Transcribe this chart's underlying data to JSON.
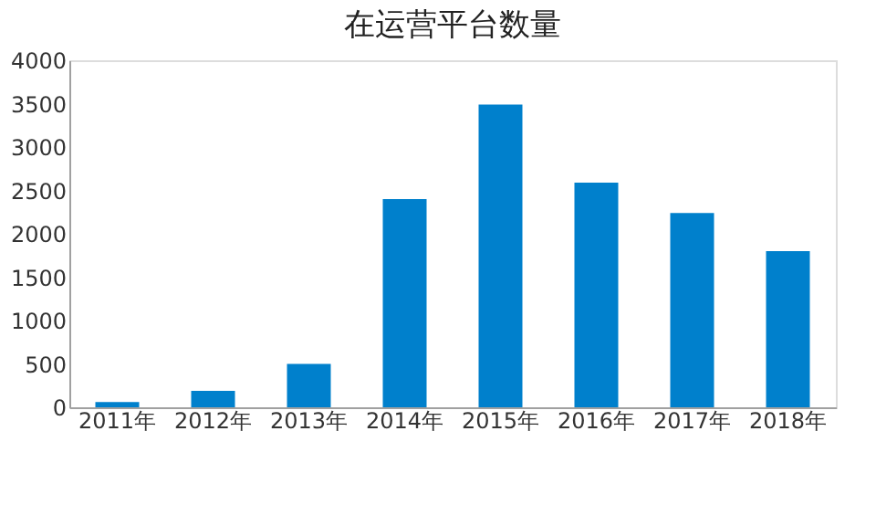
{
  "chart_data": {
    "type": "bar",
    "title": "在运营平台数量",
    "categories": [
      "2011年",
      "2012年",
      "2013年",
      "2014年",
      "2015年",
      "2016年",
      "2017年",
      "2018年"
    ],
    "values": [
      60,
      190,
      500,
      2400,
      3490,
      2590,
      2240,
      1800
    ],
    "color": "#0080cc",
    "ylim": [
      0,
      4000
    ],
    "yticks": [
      0,
      500,
      1000,
      1500,
      2000,
      2500,
      3000,
      3500,
      4000
    ],
    "grid": false
  }
}
